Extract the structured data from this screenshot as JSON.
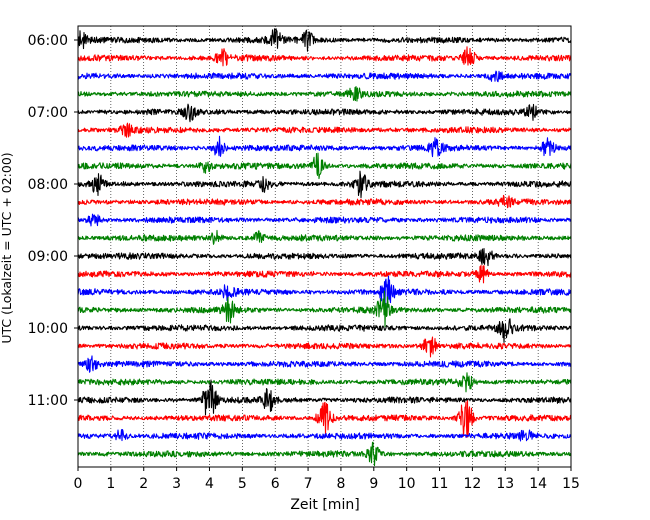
{
  "chart_data": {
    "type": "line",
    "title": "",
    "xlabel": "Zeit  [min]",
    "ylabel": "UTC (Lokalzeit = UTC + 02:00)",
    "xlim": [
      0,
      15
    ],
    "x_ticks": [
      "0",
      "1",
      "2",
      "3",
      "4",
      "5",
      "6",
      "7",
      "8",
      "9",
      "10",
      "11",
      "12",
      "13",
      "14",
      "15"
    ],
    "y_tick_labels": [
      "06:00",
      "07:00",
      "08:00",
      "09:00",
      "10:00",
      "11:00"
    ],
    "trace_interval_minutes": 15,
    "trace_start": "06:00",
    "trace_count": 24,
    "trace_colors": [
      "#000000",
      "#ff0000",
      "#0000ff",
      "#008000"
    ],
    "grid": "vertical-dotted",
    "events": [
      {
        "trace": 0,
        "t": 0.1,
        "amp": 0.7
      },
      {
        "trace": 0,
        "t": 6.0,
        "amp": 0.8
      },
      {
        "trace": 0,
        "t": 6.95,
        "amp": 0.9
      },
      {
        "trace": 1,
        "t": 4.4,
        "amp": 0.6
      },
      {
        "trace": 1,
        "t": 11.9,
        "amp": 1.0
      },
      {
        "trace": 2,
        "t": 12.7,
        "amp": 0.5
      },
      {
        "trace": 3,
        "t": 8.4,
        "amp": 0.6
      },
      {
        "trace": 4,
        "t": 3.4,
        "amp": 0.6
      },
      {
        "trace": 4,
        "t": 13.8,
        "amp": 0.6
      },
      {
        "trace": 5,
        "t": 1.5,
        "amp": 0.4
      },
      {
        "trace": 6,
        "t": 4.3,
        "amp": 0.9
      },
      {
        "trace": 6,
        "t": 10.9,
        "amp": 0.8
      },
      {
        "trace": 6,
        "t": 14.3,
        "amp": 0.9
      },
      {
        "trace": 7,
        "t": 3.9,
        "amp": 0.5
      },
      {
        "trace": 7,
        "t": 7.3,
        "amp": 1.0
      },
      {
        "trace": 8,
        "t": 0.6,
        "amp": 0.8
      },
      {
        "trace": 8,
        "t": 8.6,
        "amp": 1.0
      },
      {
        "trace": 8,
        "t": 5.7,
        "amp": 0.6
      },
      {
        "trace": 9,
        "t": 13.0,
        "amp": 0.5
      },
      {
        "trace": 10,
        "t": 0.5,
        "amp": 0.6
      },
      {
        "trace": 11,
        "t": 4.2,
        "amp": 0.5
      },
      {
        "trace": 11,
        "t": 5.5,
        "amp": 0.5
      },
      {
        "trace": 12,
        "t": 12.4,
        "amp": 0.8
      },
      {
        "trace": 13,
        "t": 12.3,
        "amp": 0.7
      },
      {
        "trace": 14,
        "t": 9.4,
        "amp": 1.3
      },
      {
        "trace": 14,
        "t": 4.6,
        "amp": 0.7
      },
      {
        "trace": 15,
        "t": 9.3,
        "amp": 1.5
      },
      {
        "trace": 15,
        "t": 4.6,
        "amp": 1.0
      },
      {
        "trace": 16,
        "t": 13.0,
        "amp": 1.2
      },
      {
        "trace": 17,
        "t": 10.7,
        "amp": 1.0
      },
      {
        "trace": 18,
        "t": 0.4,
        "amp": 0.6
      },
      {
        "trace": 19,
        "t": 11.8,
        "amp": 0.9
      },
      {
        "trace": 20,
        "t": 4.0,
        "amp": 2.0
      },
      {
        "trace": 20,
        "t": 5.8,
        "amp": 0.9
      },
      {
        "trace": 21,
        "t": 7.5,
        "amp": 1.5
      },
      {
        "trace": 21,
        "t": 11.8,
        "amp": 2.0
      },
      {
        "trace": 22,
        "t": 1.3,
        "amp": 0.5
      },
      {
        "trace": 22,
        "t": 13.6,
        "amp": 0.5
      },
      {
        "trace": 23,
        "t": 9.0,
        "amp": 0.9
      }
    ]
  }
}
